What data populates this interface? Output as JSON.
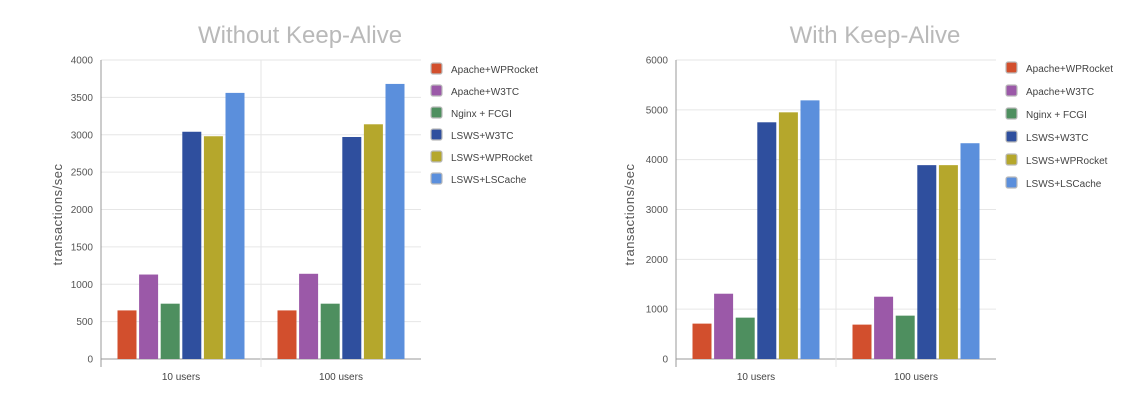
{
  "chart_data": [
    {
      "type": "bar",
      "title": "Without Keep-Alive",
      "ylabel": "transactions/sec",
      "xlabel": "",
      "ylim": [
        0,
        4000
      ],
      "yticks": [
        0,
        500,
        1000,
        1500,
        2000,
        2500,
        3000,
        3500,
        4000
      ],
      "categories": [
        "10 users",
        "100 users"
      ],
      "grid": true,
      "legend_position": "right",
      "series": [
        {
          "name": "Apache+WPRocket",
          "color": "#d24f2d",
          "values": [
            650,
            650
          ]
        },
        {
          "name": "Apache+W3TC",
          "color": "#9b59a8",
          "values": [
            1130,
            1140
          ]
        },
        {
          "name": "Nginx + FCGI",
          "color": "#4e8f5f",
          "values": [
            740,
            740
          ]
        },
        {
          "name": "LSWS+W3TC",
          "color": "#2f4f9e",
          "values": [
            3040,
            2970
          ]
        },
        {
          "name": "LSWS+WPRocket",
          "color": "#b5a72c",
          "values": [
            2980,
            3140
          ]
        },
        {
          "name": "LSWS+LSCache",
          "color": "#5b8fdc",
          "values": [
            3560,
            3680
          ]
        }
      ]
    },
    {
      "type": "bar",
      "title": "With Keep-Alive",
      "ylabel": "transactions/sec",
      "xlabel": "",
      "ylim": [
        0,
        6000
      ],
      "yticks": [
        0,
        1000,
        2000,
        3000,
        4000,
        5000,
        6000
      ],
      "categories": [
        "10 users",
        "100 users"
      ],
      "grid": true,
      "legend_position": "right",
      "series": [
        {
          "name": "Apache+WPRocket",
          "color": "#d24f2d",
          "values": [
            710,
            690
          ]
        },
        {
          "name": "Apache+W3TC",
          "color": "#9b59a8",
          "values": [
            1310,
            1250
          ]
        },
        {
          "name": "Nginx + FCGI",
          "color": "#4e8f5f",
          "values": [
            830,
            870
          ]
        },
        {
          "name": "LSWS+W3TC",
          "color": "#2f4f9e",
          "values": [
            4750,
            3890
          ]
        },
        {
          "name": "LSWS+WPRocket",
          "color": "#b5a72c",
          "values": [
            4950,
            3890
          ]
        },
        {
          "name": "LSWS+LSCache",
          "color": "#5b8fdc",
          "values": [
            5190,
            4330
          ]
        }
      ]
    }
  ]
}
